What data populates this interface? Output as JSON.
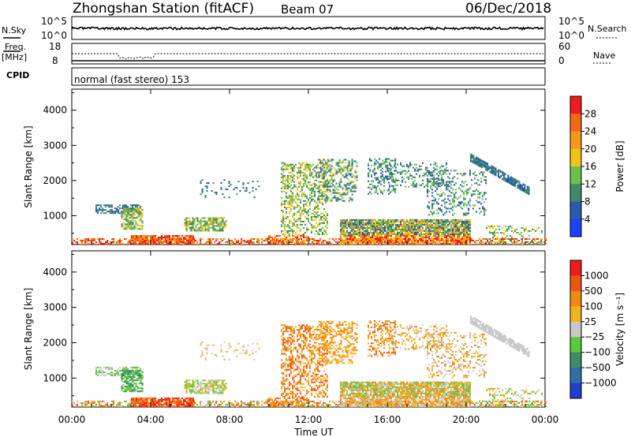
{
  "header": {
    "station": "Zhongshan Station (fitACF)",
    "beam": "Beam 07",
    "date": "06/Dec/2018"
  },
  "top_panels": {
    "nsky_label": "N.Sky",
    "nsky_tick_hi": "10^5",
    "nsky_tick_lo": "10^0",
    "nsearch_label": "N.Search",
    "freq_label_1": "Freq.",
    "freq_label_2": "[MHz]",
    "freq_tick_hi": "18",
    "freq_tick_lo": "8",
    "nave_tick_hi": "60",
    "nave_tick_lo": "0",
    "nave_label": "Nave",
    "cpid_label": "CPID",
    "cpid_text": "normal (fast stereo) 153"
  },
  "chart_data": [
    {
      "type": "heatmap",
      "name": "power",
      "ylabel": "Slant Range [km]",
      "yticks": [
        "1000",
        "2000",
        "3000",
        "4000"
      ],
      "ylim": [
        180,
        4600
      ],
      "colorbar_label": "Power [dB]",
      "colorbar_ticks": [
        "4",
        "8",
        "12",
        "16",
        "20",
        "24",
        "28"
      ],
      "colorbar_colors": [
        "#1f3fff",
        "#2a5aa8",
        "#3e8a6a",
        "#6cc04a",
        "#f2c21b",
        "#f39a1a",
        "#f06a14",
        "#ee1c1c"
      ]
    },
    {
      "type": "heatmap",
      "name": "velocity",
      "ylabel": "Slant Range [km]",
      "yticks": [
        "1000",
        "2000",
        "3000",
        "4000"
      ],
      "ylim": [
        180,
        4600
      ],
      "colorbar_label": "Velocity [m s⁻¹]",
      "colorbar_ticks": [
        "1000",
        "500",
        "100",
        "25",
        "−25",
        "−100",
        "−500",
        "−1000"
      ],
      "colorbar_colors": [
        "#1f3fcc",
        "#2e6fa8",
        "#3e8a6a",
        "#5cc83a",
        "#c8c8c8",
        "#f2b21b",
        "#f08a14",
        "#ee5514",
        "#ee1c1c"
      ]
    }
  ],
  "x_axis": {
    "ticks": [
      "00:00",
      "04:00",
      "08:00",
      "12:00",
      "16:00",
      "20:00",
      "00:00"
    ],
    "label": "Time UT"
  }
}
